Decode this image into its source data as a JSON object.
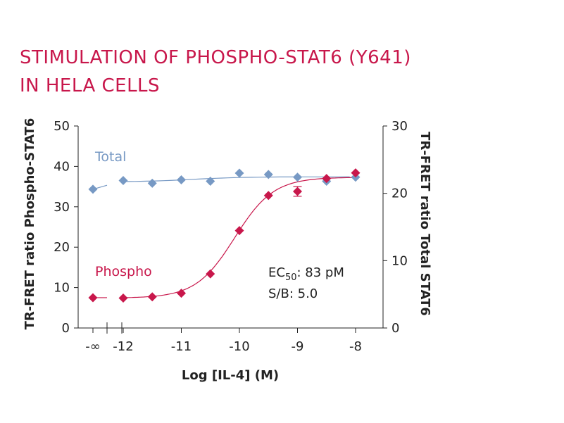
{
  "title_lines": [
    "STIMULATION OF PHOSPHO-STAT6 (Y641)",
    "IN HELA CELLS"
  ],
  "colors": {
    "title": "#c8174b",
    "phospho": "#c8174b",
    "total": "#7799c4",
    "axis": "#222222"
  },
  "chart_data": {
    "type": "scatter",
    "title": "STIMULATION OF PHOSPHO-STAT6 (Y641) IN HELA CELLS",
    "xlabel": "Log [IL-4] (M)",
    "ylabel": "TR-FRET ratio Phospho-STAT6",
    "y2label": "TR-FRET ratio Total STAT6",
    "xlim": [
      -12.5,
      -7.5
    ],
    "ylim": [
      0,
      50
    ],
    "y2lim": [
      0,
      30
    ],
    "x_tick_labels": [
      "-∞",
      "-12",
      "-11",
      "-10",
      "-9",
      "-8"
    ],
    "y_ticks": [
      0,
      10,
      20,
      30,
      40,
      50
    ],
    "y2_ticks": [
      0,
      10,
      20,
      30
    ],
    "axis_break_between": [
      "-∞",
      "-12"
    ],
    "series": [
      {
        "name": "Total",
        "axis": "right",
        "marker": "diamond",
        "color": "#7799c4",
        "zero_dose_value": 20.6,
        "x": [
          -12,
          -11.5,
          -11,
          -10.5,
          -10,
          -9.5,
          -9,
          -8.5,
          -8
        ],
        "y": [
          21.9,
          21.5,
          22.0,
          21.8,
          23.0,
          22.8,
          22.4,
          21.8,
          22.4
        ],
        "fit": "flat"
      },
      {
        "name": "Phospho",
        "axis": "left",
        "marker": "diamond",
        "color": "#c8174b",
        "zero_dose_value": 7.5,
        "x": [
          -12,
          -11.5,
          -11,
          -10.5,
          -10,
          -9.5,
          -9,
          -8.5,
          -8
        ],
        "y": [
          7.4,
          7.7,
          8.6,
          13.4,
          24.1,
          32.8,
          33.8,
          37.0,
          38.4
        ],
        "error": [
          0,
          0,
          0,
          0,
          0,
          0,
          1.2,
          0,
          0
        ],
        "fit": "sigmoidal"
      }
    ],
    "annotations": {
      "ec50_label": "EC",
      "ec50_sub": "50",
      "ec50_value": ": 83 pM",
      "sb": "S/B: 5.0"
    },
    "grid": false,
    "legend": "inline labels"
  }
}
